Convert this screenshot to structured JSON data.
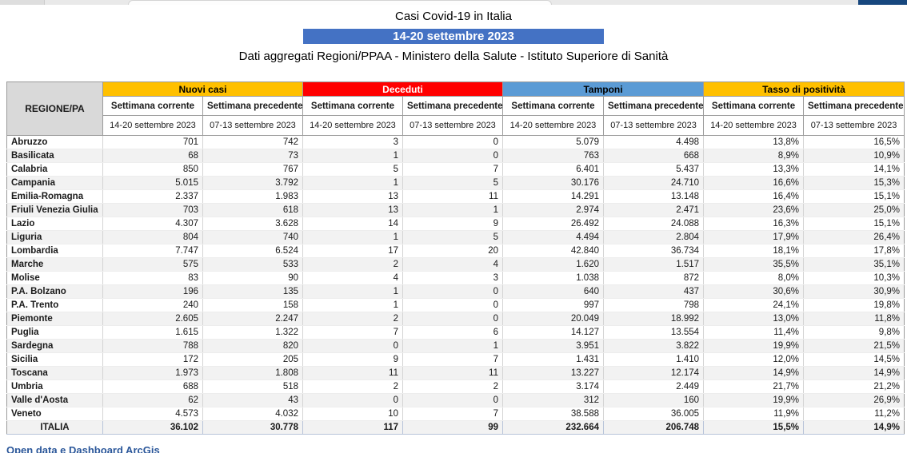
{
  "window": {
    "topbar_color": "#e9e9e9",
    "accent_segment_color": "#17477e"
  },
  "header": {
    "title": "Casi Covid-19 in Italia",
    "period_banner": "14-20 settembre 2023",
    "banner_color": "#4472C4",
    "subtitle": "Dati aggregati Regioni/PPAA - Ministero della Salute - Istituto Superiore di Sanità"
  },
  "table": {
    "corner_label": "REGIONE/PA",
    "groups": [
      {
        "label": "Nuovi casi",
        "bg": "#FFC000",
        "fg": "#000000"
      },
      {
        "label": "Deceduti",
        "bg": "#FF0000",
        "fg": "#FFFFFF"
      },
      {
        "label": "Tamponi",
        "bg": "#5B9BD5",
        "fg": "#000000"
      },
      {
        "label": "Tasso di positività",
        "bg": "#FFC000",
        "fg": "#000000"
      }
    ],
    "subheaders": [
      "Settimana corrente",
      "Settimana precedente"
    ],
    "date_current": "14-20 settembre 2023",
    "date_previous": "07-13 settembre 2023",
    "rows": [
      {
        "region": "Abruzzo",
        "values": [
          "701",
          "742",
          "3",
          "0",
          "5.079",
          "4.498",
          "13,8%",
          "16,5%"
        ]
      },
      {
        "region": "Basilicata",
        "values": [
          "68",
          "73",
          "1",
          "0",
          "763",
          "668",
          "8,9%",
          "10,9%"
        ]
      },
      {
        "region": "Calabria",
        "values": [
          "850",
          "767",
          "5",
          "7",
          "6.401",
          "5.437",
          "13,3%",
          "14,1%"
        ]
      },
      {
        "region": "Campania",
        "values": [
          "5.015",
          "3.792",
          "1",
          "5",
          "30.176",
          "24.710",
          "16,6%",
          "15,3%"
        ]
      },
      {
        "region": "Emilia-Romagna",
        "values": [
          "2.337",
          "1.983",
          "13",
          "11",
          "14.291",
          "13.148",
          "16,4%",
          "15,1%"
        ]
      },
      {
        "region": "Friuli Venezia Giulia",
        "values": [
          "703",
          "618",
          "13",
          "1",
          "2.974",
          "2.471",
          "23,6%",
          "25,0%"
        ]
      },
      {
        "region": "Lazio",
        "values": [
          "4.307",
          "3.628",
          "14",
          "9",
          "26.492",
          "24.088",
          "16,3%",
          "15,1%"
        ]
      },
      {
        "region": "Liguria",
        "values": [
          "804",
          "740",
          "1",
          "5",
          "4.494",
          "2.804",
          "17,9%",
          "26,4%"
        ]
      },
      {
        "region": "Lombardia",
        "values": [
          "7.747",
          "6.524",
          "17",
          "20",
          "42.840",
          "36.734",
          "18,1%",
          "17,8%"
        ]
      },
      {
        "region": "Marche",
        "values": [
          "575",
          "533",
          "2",
          "4",
          "1.620",
          "1.517",
          "35,5%",
          "35,1%"
        ]
      },
      {
        "region": "Molise",
        "values": [
          "83",
          "90",
          "4",
          "3",
          "1.038",
          "872",
          "8,0%",
          "10,3%"
        ]
      },
      {
        "region": "P.A. Bolzano",
        "values": [
          "196",
          "135",
          "1",
          "0",
          "640",
          "437",
          "30,6%",
          "30,9%"
        ]
      },
      {
        "region": "P.A. Trento",
        "values": [
          "240",
          "158",
          "1",
          "0",
          "997",
          "798",
          "24,1%",
          "19,8%"
        ]
      },
      {
        "region": "Piemonte",
        "values": [
          "2.605",
          "2.247",
          "2",
          "0",
          "20.049",
          "18.992",
          "13,0%",
          "11,8%"
        ]
      },
      {
        "region": "Puglia",
        "values": [
          "1.615",
          "1.322",
          "7",
          "6",
          "14.127",
          "13.554",
          "11,4%",
          "9,8%"
        ]
      },
      {
        "region": "Sardegna",
        "values": [
          "788",
          "820",
          "0",
          "1",
          "3.951",
          "3.822",
          "19,9%",
          "21,5%"
        ]
      },
      {
        "region": "Sicilia",
        "values": [
          "172",
          "205",
          "9",
          "7",
          "1.431",
          "1.410",
          "12,0%",
          "14,5%"
        ]
      },
      {
        "region": "Toscana",
        "values": [
          "1.973",
          "1.808",
          "11",
          "11",
          "13.227",
          "12.174",
          "14,9%",
          "14,9%"
        ]
      },
      {
        "region": "Umbria",
        "values": [
          "688",
          "518",
          "2",
          "2",
          "3.174",
          "2.449",
          "21,7%",
          "21,2%"
        ]
      },
      {
        "region": "Valle d'Aosta",
        "values": [
          "62",
          "43",
          "0",
          "0",
          "312",
          "160",
          "19,9%",
          "26,9%"
        ]
      },
      {
        "region": "Veneto",
        "values": [
          "4.573",
          "4.032",
          "10",
          "7",
          "38.588",
          "36.005",
          "11,9%",
          "11,2%"
        ]
      }
    ],
    "total": {
      "region": "ITALIA",
      "values": [
        "36.102",
        "30.778",
        "117",
        "99",
        "232.664",
        "206.748",
        "15,5%",
        "14,9%"
      ]
    }
  },
  "footer": {
    "link": "Open data e Dashboard ArcGis",
    "link_color": "#2b579a"
  }
}
